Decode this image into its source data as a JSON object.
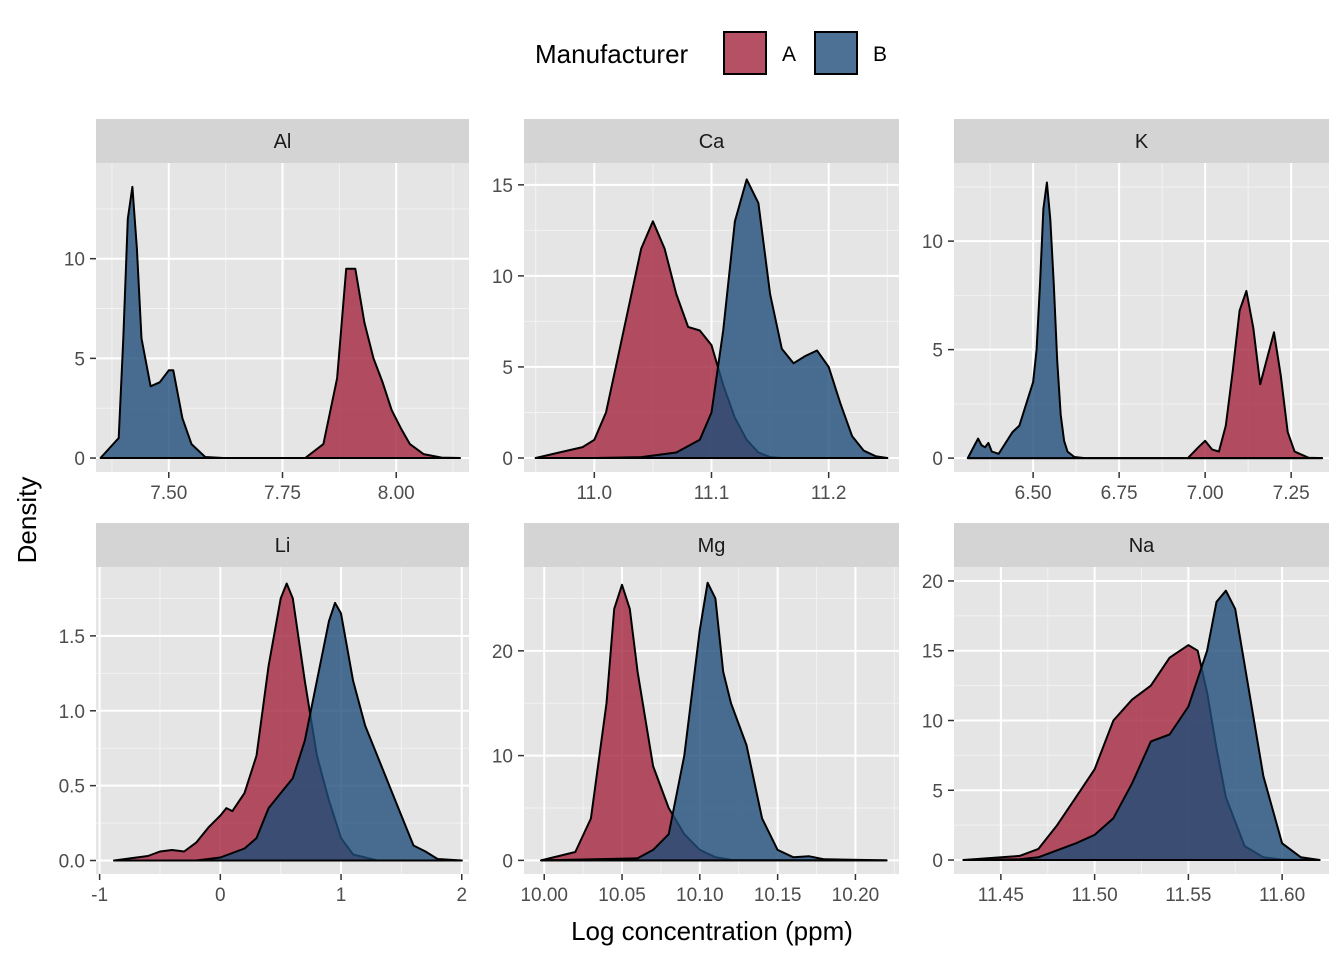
{
  "xlabel": "Log concentration (ppm)",
  "ylabel": "Density",
  "legend": {
    "title": "Manufacturer",
    "placement": "top",
    "entries": [
      {
        "name": "A",
        "color": "#A3243F"
      },
      {
        "name": "B",
        "color": "#1F4E79"
      }
    ]
  },
  "panel_background": "#E5E5E5",
  "strip_background": "#D4D4D4",
  "chart_data": [
    {
      "type": "area",
      "facet": "Al",
      "xlim": [
        7.34,
        8.16
      ],
      "ylim": [
        -0.7,
        14.8
      ],
      "xticks": [
        7.5,
        7.75,
        8.0
      ],
      "xtick_labels": [
        "7.50",
        "7.75",
        "8.00"
      ],
      "yticks": [
        0,
        5,
        10
      ],
      "ytick_labels": [
        "0",
        "5",
        "10"
      ],
      "series": [
        {
          "name": "A",
          "x": [
            7.4,
            7.8,
            7.84,
            7.87,
            7.89,
            7.91,
            7.93,
            7.95,
            7.97,
            7.99,
            8.01,
            8.03,
            8.06,
            8.1,
            8.14
          ],
          "y": [
            0,
            0,
            0.7,
            4.0,
            9.5,
            9.5,
            6.8,
            5.0,
            3.8,
            2.4,
            1.5,
            0.7,
            0.2,
            0.02,
            0
          ]
        },
        {
          "name": "B",
          "x": [
            7.35,
            7.39,
            7.4,
            7.41,
            7.42,
            7.43,
            7.44,
            7.46,
            7.48,
            7.5,
            7.51,
            7.53,
            7.55,
            7.58,
            7.62,
            8.14
          ],
          "y": [
            0,
            1.0,
            6.0,
            12.0,
            13.6,
            10.5,
            6.0,
            3.6,
            3.8,
            4.4,
            4.4,
            2.0,
            0.7,
            0.05,
            0,
            0
          ]
        }
      ]
    },
    {
      "type": "area",
      "facet": "Ca",
      "xlim": [
        10.94,
        11.26
      ],
      "ylim": [
        -0.77,
        16.2
      ],
      "xticks": [
        11.0,
        11.1,
        11.2
      ],
      "xtick_labels": [
        "11.0",
        "11.1",
        "11.2"
      ],
      "yticks": [
        0,
        5,
        10,
        15
      ],
      "ytick_labels": [
        "0",
        "5",
        "10",
        "15"
      ],
      "series": [
        {
          "name": "A",
          "x": [
            10.95,
            10.97,
            10.99,
            11.0,
            11.01,
            11.02,
            11.03,
            11.04,
            11.05,
            11.06,
            11.07,
            11.08,
            11.09,
            11.1,
            11.11,
            11.12,
            11.13,
            11.14,
            11.15,
            11.16,
            11.25
          ],
          "y": [
            0,
            0.3,
            0.6,
            1.0,
            2.5,
            5.5,
            8.5,
            11.5,
            13.0,
            11.5,
            9.0,
            7.2,
            7.0,
            6.2,
            4.0,
            2.2,
            1.0,
            0.3,
            0.05,
            0,
            0
          ]
        },
        {
          "name": "B",
          "x": [
            10.95,
            11.0,
            11.04,
            11.07,
            11.09,
            11.1,
            11.11,
            11.12,
            11.13,
            11.14,
            11.15,
            11.16,
            11.17,
            11.18,
            11.19,
            11.2,
            11.21,
            11.22,
            11.23,
            11.24,
            11.25
          ],
          "y": [
            0,
            0,
            0.05,
            0.3,
            1.0,
            2.5,
            7.0,
            13.0,
            15.3,
            14.0,
            9.0,
            6.0,
            5.2,
            5.6,
            5.9,
            5.0,
            3.0,
            1.2,
            0.4,
            0.1,
            0
          ]
        }
      ]
    },
    {
      "type": "area",
      "facet": "K",
      "xlim": [
        6.27,
        7.36
      ],
      "ylim": [
        -0.64,
        13.6
      ],
      "xticks": [
        6.5,
        6.75,
        7.0,
        7.25
      ],
      "xtick_labels": [
        "6.50",
        "6.75",
        "7.00",
        "7.25"
      ],
      "yticks": [
        0,
        5,
        10
      ],
      "ytick_labels": [
        "0",
        "5",
        "10"
      ],
      "series": [
        {
          "name": "A",
          "x": [
            6.31,
            6.95,
            6.98,
            7.0,
            7.02,
            7.04,
            7.06,
            7.08,
            7.1,
            7.12,
            7.14,
            7.16,
            7.18,
            7.2,
            7.22,
            7.24,
            7.26,
            7.3,
            7.34
          ],
          "y": [
            0,
            0,
            0.5,
            0.8,
            0.4,
            0.3,
            1.5,
            4.0,
            6.8,
            7.7,
            6.0,
            3.4,
            4.6,
            5.8,
            3.8,
            1.2,
            0.3,
            0.02,
            0
          ]
        },
        {
          "name": "B",
          "x": [
            6.31,
            6.33,
            6.34,
            6.35,
            6.36,
            6.37,
            6.38,
            6.4,
            6.42,
            6.44,
            6.46,
            6.48,
            6.5,
            6.51,
            6.52,
            6.53,
            6.54,
            6.55,
            6.56,
            6.57,
            6.58,
            6.59,
            6.6,
            6.62,
            6.65,
            7.34
          ],
          "y": [
            0,
            0.6,
            0.9,
            0.6,
            0.5,
            0.7,
            0.3,
            0.2,
            0.7,
            1.2,
            1.5,
            2.5,
            3.5,
            5.0,
            8.0,
            11.5,
            12.7,
            11.0,
            8.0,
            4.5,
            2.0,
            0.8,
            0.3,
            0.05,
            0,
            0
          ]
        }
      ]
    },
    {
      "type": "area",
      "facet": "Li",
      "xlim": [
        -1.03,
        2.06
      ],
      "ylim": [
        -0.09,
        1.96
      ],
      "xticks": [
        -1,
        0,
        1,
        2
      ],
      "xtick_labels": [
        "-1",
        "0",
        "1",
        "2"
      ],
      "yticks": [
        0.0,
        0.5,
        1.0,
        1.5
      ],
      "ytick_labels": [
        "0.0",
        "0.5",
        "1.0",
        "1.5"
      ],
      "series": [
        {
          "name": "A",
          "x": [
            -0.88,
            -0.6,
            -0.5,
            -0.4,
            -0.3,
            -0.2,
            -0.1,
            0.0,
            0.05,
            0.1,
            0.2,
            0.3,
            0.4,
            0.5,
            0.55,
            0.6,
            0.7,
            0.8,
            0.9,
            1.0,
            1.1,
            1.3,
            2.0
          ],
          "y": [
            0,
            0.03,
            0.06,
            0.07,
            0.06,
            0.12,
            0.22,
            0.3,
            0.35,
            0.33,
            0.45,
            0.7,
            1.3,
            1.75,
            1.85,
            1.75,
            1.2,
            0.7,
            0.4,
            0.15,
            0.04,
            0,
            0
          ]
        },
        {
          "name": "B",
          "x": [
            -0.88,
            -0.2,
            0.0,
            0.1,
            0.2,
            0.3,
            0.4,
            0.5,
            0.6,
            0.7,
            0.8,
            0.9,
            0.95,
            1.0,
            1.1,
            1.2,
            1.3,
            1.4,
            1.5,
            1.6,
            1.7,
            1.8,
            2.0
          ],
          "y": [
            0,
            0,
            0.02,
            0.05,
            0.08,
            0.15,
            0.35,
            0.45,
            0.55,
            0.8,
            1.2,
            1.6,
            1.72,
            1.65,
            1.2,
            0.9,
            0.7,
            0.5,
            0.3,
            0.1,
            0.06,
            0.01,
            0
          ]
        }
      ]
    },
    {
      "type": "area",
      "facet": "Mg",
      "xlim": [
        9.987,
        10.228
      ],
      "ylim": [
        -1.3,
        28.0
      ],
      "xticks": [
        10.0,
        10.05,
        10.1,
        10.15,
        10.2
      ],
      "xtick_labels": [
        "10.00",
        "10.05",
        "10.10",
        "10.15",
        "10.20"
      ],
      "yticks": [
        0,
        10,
        20
      ],
      "ytick_labels": [
        "0",
        "10",
        "20"
      ],
      "series": [
        {
          "name": "A",
          "x": [
            9.998,
            10.02,
            10.03,
            10.04,
            10.045,
            10.05,
            10.055,
            10.06,
            10.07,
            10.08,
            10.09,
            10.1,
            10.11,
            10.12,
            10.22
          ],
          "y": [
            0,
            0.8,
            4.0,
            15.0,
            24.0,
            26.3,
            24.0,
            18.0,
            9.0,
            5.0,
            2.5,
            1.0,
            0.3,
            0.05,
            0
          ]
        },
        {
          "name": "B",
          "x": [
            9.998,
            10.06,
            10.07,
            10.08,
            10.09,
            10.1,
            10.105,
            10.11,
            10.115,
            10.12,
            10.13,
            10.14,
            10.15,
            10.16,
            10.17,
            10.18,
            10.22
          ],
          "y": [
            0,
            0.2,
            1.0,
            2.5,
            10.0,
            22.0,
            26.5,
            25.0,
            18.0,
            15.0,
            11.0,
            4.0,
            1.0,
            0.3,
            0.4,
            0.1,
            0
          ]
        }
      ]
    },
    {
      "type": "area",
      "facet": "Na",
      "xlim": [
        11.425,
        11.625
      ],
      "ylim": [
        -1.0,
        21.0
      ],
      "xticks": [
        11.45,
        11.5,
        11.55,
        11.6
      ],
      "xtick_labels": [
        "11.45",
        "11.50",
        "11.55",
        "11.60"
      ],
      "yticks": [
        0,
        5,
        10,
        15,
        20
      ],
      "ytick_labels": [
        "0",
        "5",
        "10",
        "15",
        "20"
      ],
      "series": [
        {
          "name": "A",
          "x": [
            11.43,
            11.46,
            11.47,
            11.48,
            11.49,
            11.5,
            11.51,
            11.52,
            11.53,
            11.54,
            11.55,
            11.555,
            11.56,
            11.565,
            11.57,
            11.58,
            11.59,
            11.6,
            11.62
          ],
          "y": [
            0,
            0.3,
            0.8,
            2.5,
            4.5,
            6.5,
            10.0,
            11.5,
            12.5,
            14.5,
            15.4,
            15.0,
            12.0,
            8.0,
            4.5,
            1.0,
            0.2,
            0.03,
            0
          ]
        },
        {
          "name": "B",
          "x": [
            11.43,
            11.46,
            11.47,
            11.48,
            11.49,
            11.5,
            11.51,
            11.52,
            11.53,
            11.54,
            11.55,
            11.56,
            11.565,
            11.57,
            11.575,
            11.58,
            11.59,
            11.6,
            11.61,
            11.62
          ],
          "y": [
            0,
            0.05,
            0.2,
            0.7,
            1.2,
            1.8,
            3.0,
            5.5,
            8.5,
            9.0,
            11.0,
            15.0,
            18.5,
            19.3,
            18.0,
            14.0,
            6.0,
            1.2,
            0.2,
            0
          ]
        }
      ]
    }
  ]
}
